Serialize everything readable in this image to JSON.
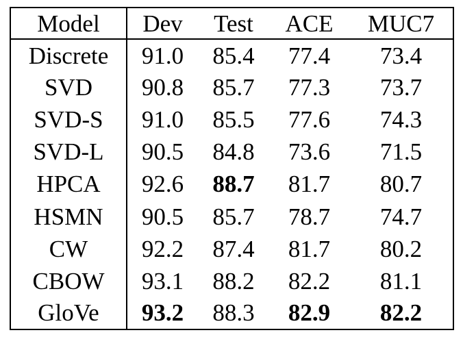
{
  "table": {
    "headers": [
      "Model",
      "Dev",
      "Test",
      "ACE",
      "MUC7"
    ],
    "rows": [
      {
        "model": "Discrete",
        "values": [
          "91.0",
          "85.4",
          "77.4",
          "73.4"
        ],
        "bold": [
          false,
          false,
          false,
          false
        ]
      },
      {
        "model": "SVD",
        "values": [
          "90.8",
          "85.7",
          "77.3",
          "73.7"
        ],
        "bold": [
          false,
          false,
          false,
          false
        ]
      },
      {
        "model": "SVD-S",
        "values": [
          "91.0",
          "85.5",
          "77.6",
          "74.3"
        ],
        "bold": [
          false,
          false,
          false,
          false
        ]
      },
      {
        "model": "SVD-L",
        "values": [
          "90.5",
          "84.8",
          "73.6",
          "71.5"
        ],
        "bold": [
          false,
          false,
          false,
          false
        ]
      },
      {
        "model": "HPCA",
        "values": [
          "92.6",
          "88.7",
          "81.7",
          "80.7"
        ],
        "bold": [
          false,
          true,
          false,
          false
        ]
      },
      {
        "model": "HSMN",
        "values": [
          "90.5",
          "85.7",
          "78.7",
          "74.7"
        ],
        "bold": [
          false,
          false,
          false,
          false
        ]
      },
      {
        "model": "CW",
        "values": [
          "92.2",
          "87.4",
          "81.7",
          "80.2"
        ],
        "bold": [
          false,
          false,
          false,
          false
        ]
      },
      {
        "model": "CBOW",
        "values": [
          "93.1",
          "88.2",
          "82.2",
          "81.1"
        ],
        "bold": [
          false,
          false,
          false,
          false
        ]
      },
      {
        "model": "GloVe",
        "values": [
          "93.2",
          "88.3",
          "82.9",
          "82.2"
        ],
        "bold": [
          true,
          false,
          true,
          true
        ]
      }
    ]
  }
}
